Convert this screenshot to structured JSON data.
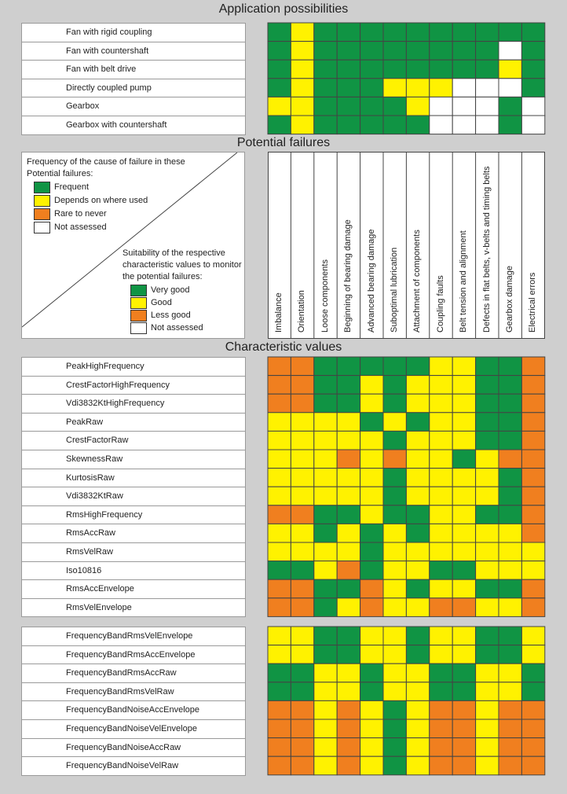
{
  "titles": {
    "application": "Application possibilities",
    "failures": "Potential failures",
    "characteristic": "Characteristic values"
  },
  "colors": {
    "G": "#109444",
    "Y": "#fff200",
    "O": "#f07f1f",
    "W": "#ffffff",
    "grid": "#444444"
  },
  "legend_frequency": {
    "title_line1": "Frequency of the cause of failure in these",
    "title_line2": "Potential failures:",
    "items": [
      {
        "label": "Frequent",
        "color": "#109444"
      },
      {
        "label": "Depends on where used",
        "color": "#fff200"
      },
      {
        "label": "Rare to never",
        "color": "#f07f1f"
      },
      {
        "label": "Not assessed",
        "color": "#ffffff"
      }
    ]
  },
  "legend_suitability": {
    "title_line1": "Suitability of the respective",
    "title_line2": "characteristic values to monitor",
    "title_line3": "the potential failures:",
    "items": [
      {
        "label": "Very good",
        "color": "#109444"
      },
      {
        "label": "Good",
        "color": "#fff200"
      },
      {
        "label": "Less good",
        "color": "#f07f1f"
      },
      {
        "label": "Not assessed",
        "color": "#ffffff"
      }
    ]
  },
  "chart_data": {
    "type": "heatmap",
    "columns": [
      "Imbalance",
      "Orientation",
      "Loose components",
      "Beginning of bearing damage",
      "Advanced bearing damage",
      "Suboptimal lubrication",
      "Attachment of components",
      "Coupling faults",
      "Belt tension and alignment",
      "Defects in flat belts, v-belts and timing belts",
      "Gearbox damage",
      "Electrical errors"
    ],
    "application_rows": [
      {
        "label": "Fan with rigid coupling",
        "cells": [
          "G",
          "Y",
          "G",
          "G",
          "G",
          "G",
          "G",
          "G",
          "G",
          "G",
          "G",
          "G"
        ]
      },
      {
        "label": "Fan with countershaft",
        "cells": [
          "G",
          "Y",
          "G",
          "G",
          "G",
          "G",
          "G",
          "G",
          "G",
          "G",
          "W",
          "G"
        ]
      },
      {
        "label": "Fan with belt drive",
        "cells": [
          "G",
          "Y",
          "G",
          "G",
          "G",
          "G",
          "G",
          "G",
          "G",
          "G",
          "Y",
          "G"
        ]
      },
      {
        "label": "Directly coupled pump",
        "cells": [
          "G",
          "Y",
          "G",
          "G",
          "G",
          "Y",
          "Y",
          "Y",
          "W",
          "W",
          "W",
          "G"
        ]
      },
      {
        "label": "Gearbox",
        "cells": [
          "Y",
          "Y",
          "G",
          "G",
          "G",
          "G",
          "Y",
          "W",
          "W",
          "W",
          "G",
          "W"
        ]
      },
      {
        "label": "Gearbox with countershaft",
        "cells": [
          "G",
          "Y",
          "G",
          "G",
          "G",
          "G",
          "G",
          "W",
          "W",
          "W",
          "G",
          "W"
        ]
      }
    ],
    "characteristic_rows": [
      {
        "label": "PeakHighFrequency",
        "cells": [
          "O",
          "O",
          "G",
          "G",
          "G",
          "G",
          "G",
          "Y",
          "Y",
          "G",
          "G",
          "O"
        ]
      },
      {
        "label": "CrestFactorHighFrequency",
        "cells": [
          "O",
          "O",
          "G",
          "G",
          "Y",
          "G",
          "Y",
          "Y",
          "Y",
          "G",
          "G",
          "O"
        ]
      },
      {
        "label": "Vdi3832KtHighFrequency",
        "cells": [
          "O",
          "O",
          "G",
          "G",
          "Y",
          "G",
          "Y",
          "Y",
          "Y",
          "G",
          "G",
          "O"
        ]
      },
      {
        "label": "PeakRaw",
        "cells": [
          "Y",
          "Y",
          "Y",
          "Y",
          "G",
          "Y",
          "G",
          "Y",
          "Y",
          "G",
          "G",
          "O"
        ]
      },
      {
        "label": "CrestFactorRaw",
        "cells": [
          "Y",
          "Y",
          "Y",
          "Y",
          "Y",
          "G",
          "Y",
          "Y",
          "Y",
          "G",
          "G",
          "O"
        ]
      },
      {
        "label": "SkewnessRaw",
        "cells": [
          "Y",
          "Y",
          "Y",
          "O",
          "Y",
          "O",
          "Y",
          "Y",
          "G",
          "Y",
          "O",
          "O"
        ]
      },
      {
        "label": "KurtosisRaw",
        "cells": [
          "Y",
          "Y",
          "Y",
          "Y",
          "Y",
          "G",
          "Y",
          "Y",
          "Y",
          "Y",
          "G",
          "O"
        ]
      },
      {
        "label": "Vdi3832KtRaw",
        "cells": [
          "Y",
          "Y",
          "Y",
          "Y",
          "Y",
          "G",
          "Y",
          "Y",
          "Y",
          "Y",
          "G",
          "O"
        ]
      },
      {
        "label": "RmsHighFrequency",
        "cells": [
          "O",
          "O",
          "G",
          "G",
          "Y",
          "G",
          "G",
          "Y",
          "Y",
          "G",
          "G",
          "O"
        ]
      },
      {
        "label": "RmsAccRaw",
        "cells": [
          "Y",
          "Y",
          "G",
          "Y",
          "G",
          "Y",
          "G",
          "Y",
          "Y",
          "Y",
          "Y",
          "O"
        ]
      },
      {
        "label": "RmsVelRaw",
        "cells": [
          "Y",
          "Y",
          "Y",
          "Y",
          "G",
          "Y",
          "Y",
          "Y",
          "Y",
          "Y",
          "Y",
          "Y"
        ]
      },
      {
        "label": "Iso10816",
        "cells": [
          "G",
          "G",
          "Y",
          "O",
          "G",
          "Y",
          "Y",
          "G",
          "G",
          "Y",
          "Y",
          "Y"
        ]
      },
      {
        "label": "RmsAccEnvelope",
        "cells": [
          "O",
          "O",
          "G",
          "G",
          "O",
          "Y",
          "G",
          "Y",
          "Y",
          "G",
          "G",
          "O"
        ]
      },
      {
        "label": "RmsVelEnvelope",
        "cells": [
          "O",
          "O",
          "G",
          "Y",
          "O",
          "Y",
          "Y",
          "O",
          "O",
          "Y",
          "Y",
          "O"
        ]
      }
    ],
    "frequency_band_rows": [
      {
        "label": "FrequencyBandRmsVelEnvelope",
        "cells": [
          "Y",
          "Y",
          "G",
          "G",
          "Y",
          "Y",
          "G",
          "Y",
          "Y",
          "G",
          "G",
          "Y"
        ]
      },
      {
        "label": "FrequencyBandRmsAccEnvelope",
        "cells": [
          "Y",
          "Y",
          "G",
          "G",
          "Y",
          "Y",
          "G",
          "Y",
          "Y",
          "G",
          "G",
          "Y"
        ]
      },
      {
        "label": "FrequencyBandRmsAccRaw",
        "cells": [
          "G",
          "G",
          "Y",
          "Y",
          "G",
          "Y",
          "Y",
          "G",
          "G",
          "Y",
          "Y",
          "G"
        ]
      },
      {
        "label": "FrequencyBandRmsVelRaw",
        "cells": [
          "G",
          "G",
          "Y",
          "Y",
          "G",
          "Y",
          "Y",
          "G",
          "G",
          "Y",
          "Y",
          "G"
        ]
      },
      {
        "label": "FrequencyBandNoiseAccEnvelope",
        "cells": [
          "O",
          "O",
          "Y",
          "O",
          "Y",
          "G",
          "Y",
          "O",
          "O",
          "Y",
          "O",
          "O"
        ]
      },
      {
        "label": "FrequencyBandNoiseVelEnvelope",
        "cells": [
          "O",
          "O",
          "Y",
          "O",
          "Y",
          "G",
          "Y",
          "O",
          "O",
          "Y",
          "O",
          "O"
        ]
      },
      {
        "label": "FrequencyBandNoiseAccRaw",
        "cells": [
          "O",
          "O",
          "Y",
          "O",
          "Y",
          "G",
          "Y",
          "O",
          "O",
          "Y",
          "O",
          "O"
        ]
      },
      {
        "label": "FrequencyBandNoiseVelRaw",
        "cells": [
          "O",
          "O",
          "Y",
          "O",
          "Y",
          "G",
          "Y",
          "O",
          "O",
          "Y",
          "O",
          "O"
        ]
      }
    ]
  }
}
